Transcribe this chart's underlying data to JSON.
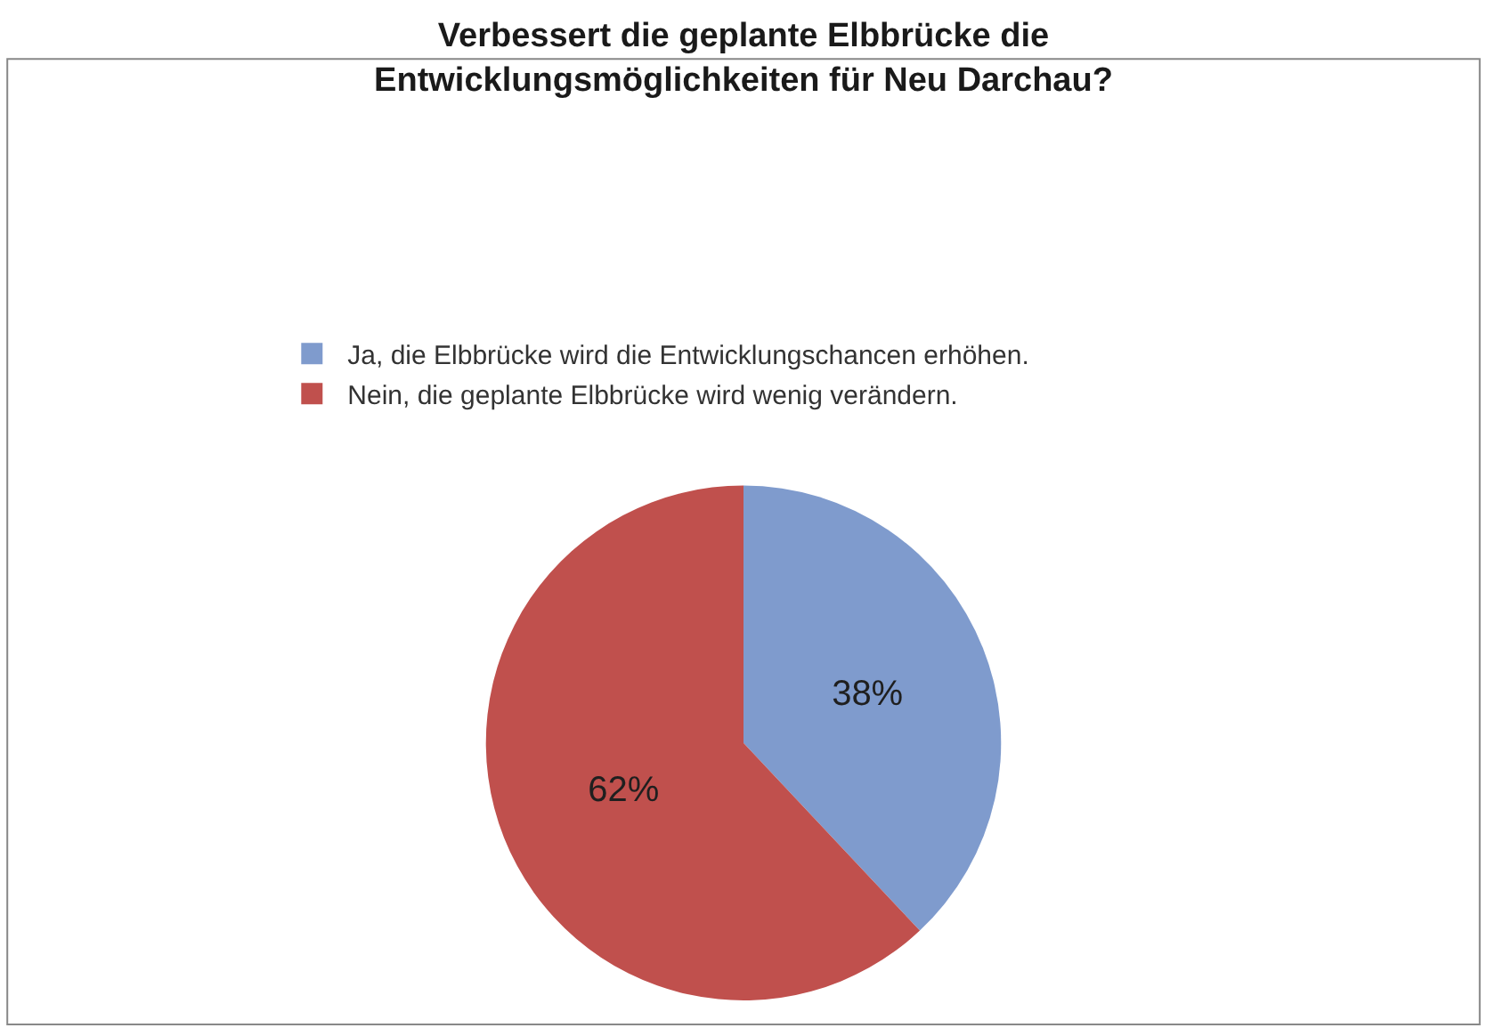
{
  "chart_data": {
    "type": "pie",
    "title": "Verbessert die geplante Elbbrücke die\nEntwicklungsmöglichkeiten für Neu Darchau?",
    "categories": [
      "Ja, die Elbbrücke wird die Entwicklungschancen erhöhen.",
      "Nein, die geplante Elbbrücke wird wenig verändern."
    ],
    "values": [
      38,
      62
    ],
    "colors": [
      "#7f9bcd",
      "#c0504d"
    ],
    "value_labels": [
      "38%",
      "62%"
    ],
    "legend": "top left"
  }
}
